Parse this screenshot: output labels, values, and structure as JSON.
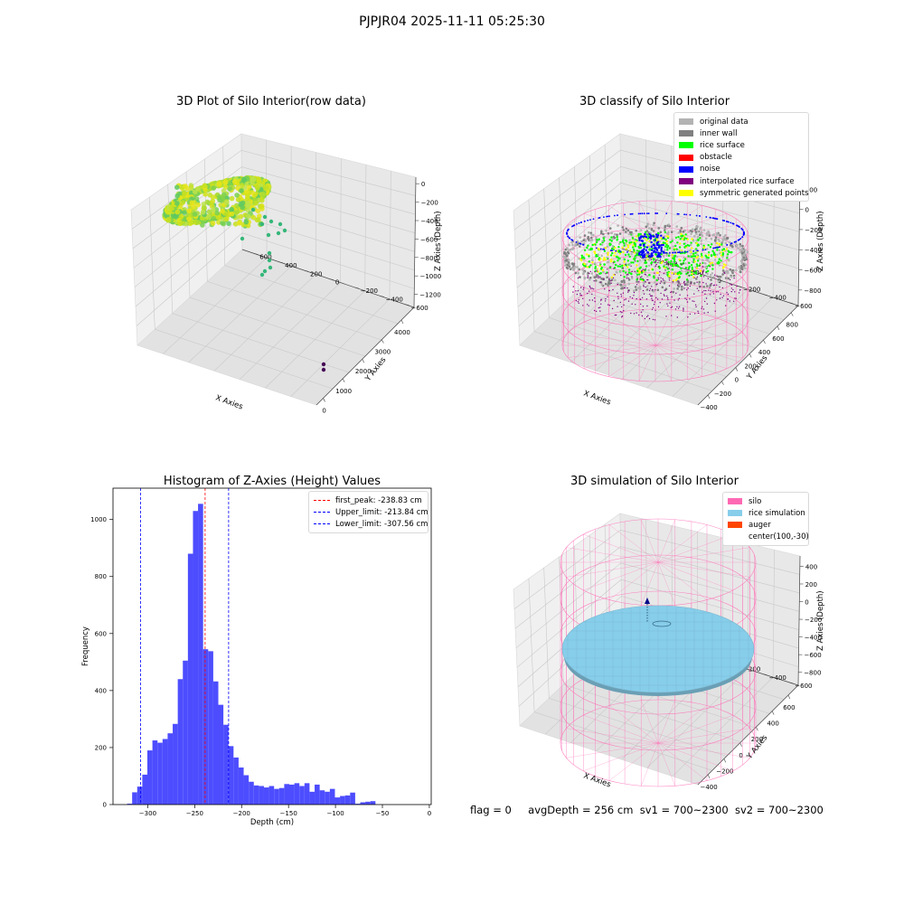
{
  "figure": {
    "suptitle": "PJPJR04 2025-11-11 05:25:30",
    "footer": {
      "flag": "flag = 0",
      "avg_depth": "avgDepth = 256 cm",
      "sv1": "sv1 = 700~2300",
      "sv2": "sv2 = 700~2300"
    }
  },
  "colors": {
    "original_data": "#b3b3b3",
    "inner_wall": "#808080",
    "rice_surface": "#00ff00",
    "obstacle": "#ff0000",
    "noise": "#0000ff",
    "interpolated_rice_surface": "#800080",
    "symmetric_generated_points": "#ffff00",
    "silo": "#ff69b4",
    "rice_simulation": "#87ceeb",
    "auger": "#ff4500",
    "histogram_bar": "#4d4dff",
    "peak_line": "#ff0000",
    "limit_line": "#0000ff"
  },
  "chart_data": [
    {
      "type": "scatter",
      "subtype": "3d",
      "title": "3D Plot of Silo Interior(row data)",
      "xlabel": "X Axies",
      "ylabel": "Y Axies",
      "zlabel": "Z Axies (Depth)",
      "xticks": [
        "0",
        "1000",
        "2000",
        "3000",
        "4000"
      ],
      "yticks": [
        "−600",
        "−400",
        "−200",
        "0",
        "200",
        "400",
        "600"
      ],
      "zticks": [
        "0",
        "−200",
        "−400",
        "−600",
        "−800",
        "−1000",
        "−1200"
      ],
      "colormap": "viridis",
      "grid": true
    },
    {
      "type": "scatter",
      "subtype": "3d",
      "title": "3D classify of Silo Interior",
      "xlabel": "X Axies",
      "ylabel": "Y Axies",
      "zlabel": "Z Axies (Depth)",
      "xticks": [
        "−400",
        "−200",
        "0",
        "200",
        "400",
        "600",
        "800"
      ],
      "yticks": [
        "−600",
        "−400",
        "−200",
        "0",
        "200",
        "400",
        "600"
      ],
      "zticks": [
        "200",
        "0",
        "−200",
        "−400",
        "−600",
        "−800"
      ],
      "legend": [
        "original data",
        "inner wall",
        "rice surface",
        "obstacle",
        "noise",
        "interpolated rice surface",
        "symmetric generated points"
      ],
      "legend_position": "top-right",
      "grid": true
    },
    {
      "type": "bar",
      "subtype": "histogram",
      "title": "Histogram of Z-Axies (Height) Values",
      "xlabel": "Depth (cm)",
      "ylabel": "Frequency",
      "xlim": [
        -337,
        2
      ],
      "ylim": [
        0,
        1110
      ],
      "xticks": [
        -300,
        -250,
        -200,
        -150,
        -100,
        -50,
        0
      ],
      "xtick_labels": [
        "−300",
        "−250",
        "−200",
        "−150",
        "−100",
        "−50",
        "0"
      ],
      "yticks": [
        0,
        200,
        400,
        600,
        800,
        1000
      ],
      "bin_start": -322,
      "bin_width": 5.4,
      "values": [
        3,
        43,
        63,
        105,
        190,
        225,
        217,
        230,
        250,
        283,
        440,
        505,
        880,
        1030,
        1055,
        545,
        538,
        432,
        350,
        280,
        205,
        165,
        130,
        103,
        80,
        67,
        65,
        60,
        65,
        55,
        58,
        72,
        70,
        75,
        65,
        75,
        45,
        70,
        50,
        45,
        55,
        25,
        30,
        32,
        42,
        3,
        8,
        10,
        12
      ],
      "vlines": [
        {
          "label": "first_peak: -238.83 cm",
          "x": -238.83,
          "color": "#ff0000"
        },
        {
          "label": "Upper_limit: -213.84 cm",
          "x": -213.84,
          "color": "#0000ff"
        },
        {
          "label": "Lower_limit: -307.56 cm",
          "x": -307.56,
          "color": "#0000ff"
        }
      ],
      "legend_position": "top-right"
    },
    {
      "type": "scatter",
      "subtype": "3d",
      "title": "3D simulation of Silo Interior",
      "xlabel": "X Axies",
      "ylabel": "Y Axies",
      "zlabel": "Z Axies (Depth)",
      "xticks": [
        "−400",
        "−200",
        "0",
        "200",
        "400",
        "600"
      ],
      "yticks": [
        "−600",
        "−400",
        "−200",
        "0",
        "200",
        "400",
        "600"
      ],
      "zticks": [
        "400",
        "200",
        "0",
        "−200",
        "−400",
        "−600",
        "−800"
      ],
      "legend": [
        "silo",
        "rice simulation",
        "auger",
        "center(100,-30)"
      ],
      "legend_position": "top-right",
      "grid": true
    }
  ]
}
